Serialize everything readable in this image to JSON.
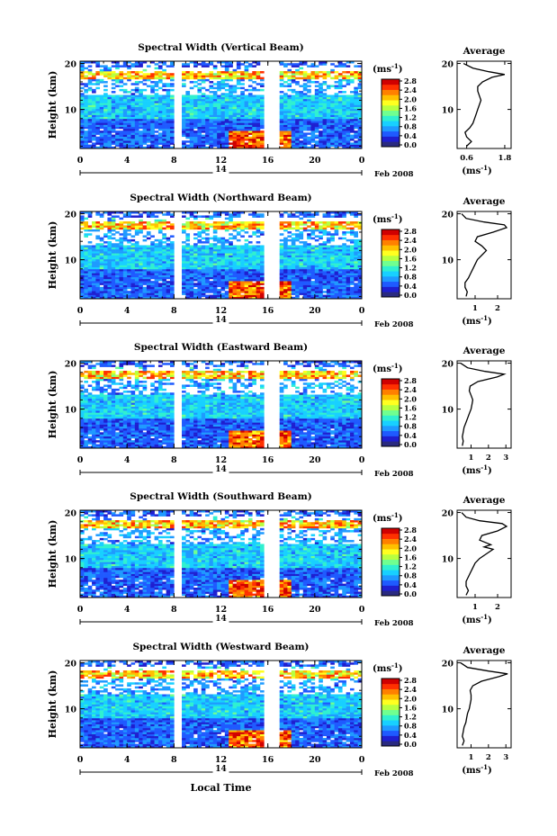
{
  "panels": [
    {
      "title": "Spectral Width (Vertical Beam)",
      "avg_xticks": [
        "0.6",
        "1.8"
      ],
      "avg_xtick_values": [
        0.6,
        1.8
      ],
      "avg_xlim": [
        0.3,
        2.0
      ],
      "avg_profile": [
        [
          0.6,
          2
        ],
        [
          0.75,
          3
        ],
        [
          0.6,
          4
        ],
        [
          0.55,
          5
        ],
        [
          0.7,
          6
        ],
        [
          0.8,
          7
        ],
        [
          0.85,
          8
        ],
        [
          0.9,
          9
        ],
        [
          0.95,
          10
        ],
        [
          1.0,
          11
        ],
        [
          1.05,
          12
        ],
        [
          1.0,
          13
        ],
        [
          0.95,
          14
        ],
        [
          0.95,
          15
        ],
        [
          1.1,
          16
        ],
        [
          1.4,
          17
        ],
        [
          1.8,
          17.6
        ],
        [
          1.3,
          18.2
        ],
        [
          0.8,
          19
        ],
        [
          0.5,
          20
        ]
      ]
    },
    {
      "title": "Spectral Width (Northward Beam)",
      "avg_xticks": [
        "1",
        "2"
      ],
      "avg_xtick_values": [
        1,
        2
      ],
      "avg_xlim": [
        0.2,
        2.6
      ],
      "avg_profile": [
        [
          0.6,
          2
        ],
        [
          0.65,
          3
        ],
        [
          0.55,
          4
        ],
        [
          0.55,
          5
        ],
        [
          0.7,
          6
        ],
        [
          0.8,
          7
        ],
        [
          0.9,
          8
        ],
        [
          1.0,
          9
        ],
        [
          1.1,
          10
        ],
        [
          1.3,
          11
        ],
        [
          1.5,
          12
        ],
        [
          1.3,
          13
        ],
        [
          1.0,
          14
        ],
        [
          1.1,
          15
        ],
        [
          1.8,
          16
        ],
        [
          2.4,
          17
        ],
        [
          2.3,
          17.6
        ],
        [
          1.4,
          18.2
        ],
        [
          0.6,
          19
        ],
        [
          0.4,
          20
        ]
      ]
    },
    {
      "title": "Spectral Width (Eastward Beam)",
      "avg_xticks": [
        "1",
        "2",
        "3"
      ],
      "avg_xtick_values": [
        1,
        2,
        3
      ],
      "avg_xlim": [
        0.2,
        3.3
      ],
      "avg_profile": [
        [
          0.5,
          2
        ],
        [
          0.55,
          3
        ],
        [
          0.5,
          4
        ],
        [
          0.55,
          5
        ],
        [
          0.6,
          6
        ],
        [
          0.7,
          7
        ],
        [
          0.8,
          8
        ],
        [
          0.9,
          9
        ],
        [
          1.0,
          10
        ],
        [
          1.05,
          11
        ],
        [
          1.1,
          12
        ],
        [
          1.0,
          13
        ],
        [
          0.9,
          14
        ],
        [
          0.95,
          15
        ],
        [
          1.4,
          16
        ],
        [
          2.5,
          17
        ],
        [
          2.9,
          17.6
        ],
        [
          1.8,
          18.2
        ],
        [
          0.8,
          19
        ],
        [
          0.4,
          20
        ]
      ]
    },
    {
      "title": "Spectral Width (Southward Beam)",
      "avg_xticks": [
        "1",
        "2"
      ],
      "avg_xtick_values": [
        1,
        2
      ],
      "avg_xlim": [
        0.2,
        2.6
      ],
      "avg_profile": [
        [
          0.6,
          2
        ],
        [
          0.7,
          3
        ],
        [
          0.6,
          4
        ],
        [
          0.6,
          5
        ],
        [
          0.7,
          6
        ],
        [
          0.8,
          7
        ],
        [
          0.9,
          8
        ],
        [
          1.0,
          9
        ],
        [
          1.2,
          10
        ],
        [
          1.5,
          11
        ],
        [
          1.8,
          12
        ],
        [
          1.4,
          12.5
        ],
        [
          1.7,
          13
        ],
        [
          1.2,
          14
        ],
        [
          1.3,
          15
        ],
        [
          2.0,
          16
        ],
        [
          2.4,
          17
        ],
        [
          2.2,
          17.6
        ],
        [
          1.2,
          18.2
        ],
        [
          0.6,
          19
        ],
        [
          0.4,
          20
        ]
      ]
    },
    {
      "title": "Spectral Width (Westward Beam)",
      "avg_xticks": [
        "1",
        "2",
        "3"
      ],
      "avg_xtick_values": [
        1,
        2,
        3
      ],
      "avg_xlim": [
        0.2,
        3.3
      ],
      "avg_profile": [
        [
          0.5,
          2
        ],
        [
          0.6,
          3
        ],
        [
          0.5,
          4
        ],
        [
          0.55,
          5
        ],
        [
          0.6,
          6
        ],
        [
          0.7,
          7
        ],
        [
          0.75,
          8
        ],
        [
          0.8,
          9
        ],
        [
          0.9,
          10
        ],
        [
          0.95,
          11
        ],
        [
          1.0,
          12
        ],
        [
          1.0,
          13
        ],
        [
          0.95,
          14
        ],
        [
          1.1,
          15
        ],
        [
          1.6,
          16
        ],
        [
          2.6,
          17
        ],
        [
          3.1,
          17.6
        ],
        [
          2.0,
          18.2
        ],
        [
          0.8,
          19
        ],
        [
          0.4,
          20
        ]
      ]
    }
  ],
  "common": {
    "ylabel": "Height (km)",
    "yticks": [
      "20",
      "10"
    ],
    "ytick_values": [
      20,
      10
    ],
    "ylim": [
      1.5,
      20.5
    ],
    "xticks": [
      "0",
      "4",
      "8",
      "12",
      "16",
      "20",
      "0"
    ],
    "xtick_values": [
      0,
      4,
      8,
      12,
      16,
      20,
      24
    ],
    "xlim": [
      0,
      24
    ],
    "date_tick": "14",
    "date_suffix": "Feb 2008",
    "units": "(ms",
    "units_exp": "-1",
    "units_close": ")",
    "colorbar_ticks": [
      "2.8",
      "2.4",
      "2.0",
      "1.6",
      "1.2",
      "0.8",
      "0.4",
      "0.0"
    ],
    "colorbar_values": [
      2.8,
      2.4,
      2.0,
      1.6,
      1.2,
      0.8,
      0.4,
      0.0
    ],
    "colorbar_colors": [
      "#2a2a80",
      "#1f1fd0",
      "#1f5aff",
      "#1f9aff",
      "#18d0ff",
      "#30f0d0",
      "#70ff90",
      "#b8ff40",
      "#ffff20",
      "#ffc000",
      "#ff8000",
      "#ff3000",
      "#d00000"
    ],
    "avg_title": "Average",
    "avg_yticks": [
      "20",
      "10"
    ],
    "avg_ytick_values": [
      20,
      10
    ],
    "avg_xlabel": "(ms",
    "xlabel": "Local Time",
    "data_gaps_hours": [
      [
        8,
        8.6
      ],
      [
        15.6,
        17
      ]
    ]
  },
  "chart_data": {
    "type": "heatmap",
    "title": "Spectral Width",
    "xlabel": "Local Time",
    "ylabel": "Height (km)",
    "xlim": [
      0,
      24
    ],
    "ylim": [
      1.5,
      20.5
    ],
    "colorbar_range": [
      0.0,
      2.8
    ],
    "series": [
      {
        "name": "Vertical Beam"
      },
      {
        "name": "Northward Beam"
      },
      {
        "name": "Eastward Beam"
      },
      {
        "name": "Southward Beam"
      },
      {
        "name": "Westward Beam"
      }
    ]
  }
}
